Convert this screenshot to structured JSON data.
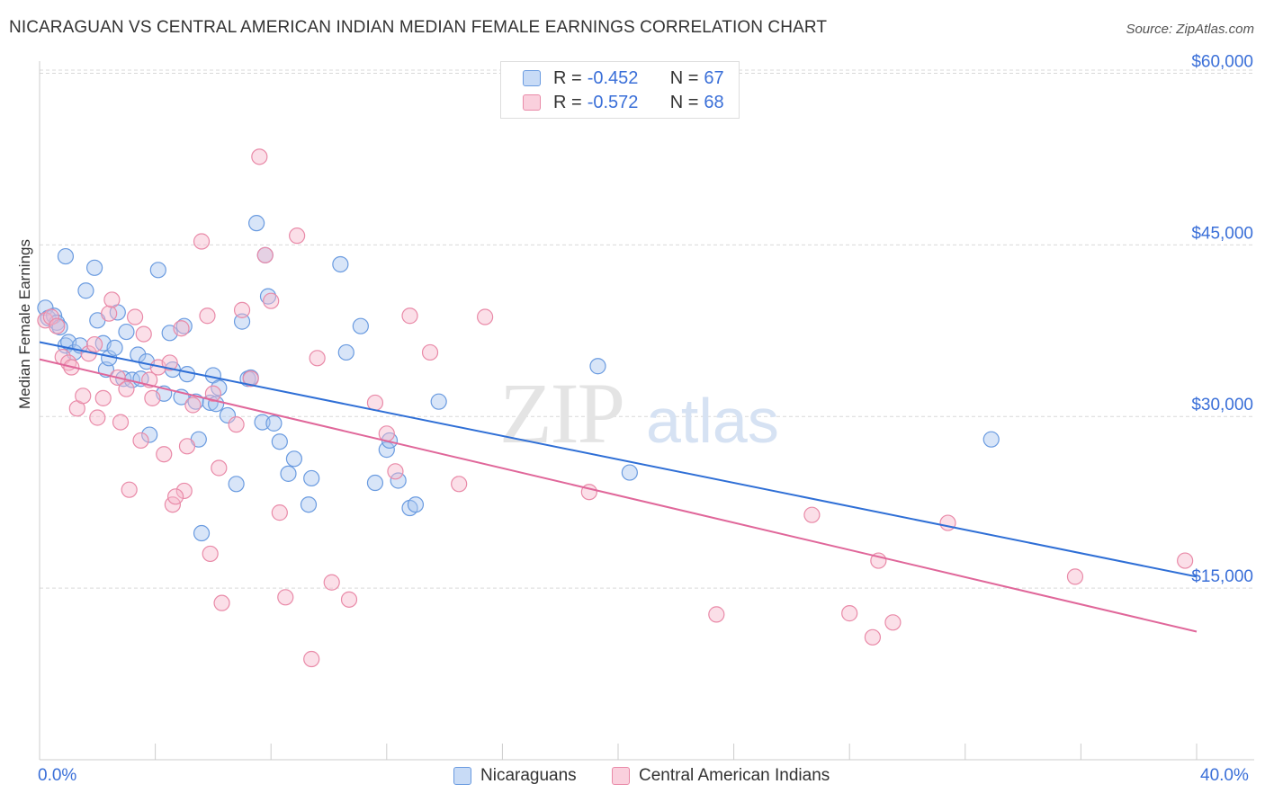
{
  "title": "NICARAGUAN VS CENTRAL AMERICAN INDIAN MEDIAN FEMALE EARNINGS CORRELATION CHART",
  "source": "Source: ZipAtlas.com",
  "watermark": {
    "part1": "ZIP",
    "part2": "atlas"
  },
  "legend_top": [
    {
      "r_label": "R = ",
      "r_value": "-0.452",
      "n_label": "N = ",
      "n_value": "67"
    },
    {
      "r_label": "R = ",
      "r_value": "-0.572",
      "n_label": "N = ",
      "n_value": "68"
    }
  ],
  "legend_bottom": [
    "Nicaraguans",
    "Central American Indians"
  ],
  "x_axis": {
    "min_label": "0.0%",
    "max_label": "40.0%"
  },
  "colors": {
    "blue_fill": "#a9c6f0",
    "blue_stroke": "#6a9be0",
    "blue_line": "#2f6fd6",
    "pink_fill": "#f6b8cb",
    "pink_stroke": "#e98aa8",
    "pink_line": "#e0679a",
    "axis_text": "#3a6fd8",
    "grid": "#d9d9d9"
  },
  "chart_data": {
    "type": "scatter",
    "xlabel": "",
    "ylabel": "Median Female Earnings",
    "xlim": [
      0,
      40
    ],
    "ylim": [
      0,
      62000
    ],
    "y_ticks": [
      {
        "value": 15000,
        "label": "$15,000"
      },
      {
        "value": 30000,
        "label": "$30,000"
      },
      {
        "value": 45000,
        "label": "$45,000"
      },
      {
        "value": 60000,
        "label": "$60,000"
      }
    ],
    "series": [
      {
        "name": "Nicaraguans",
        "color": "#6a9be0",
        "trend": {
          "x": [
            0,
            40
          ],
          "y": [
            36500,
            16000
          ]
        },
        "points": [
          [
            0.2,
            39500
          ],
          [
            0.3,
            38600
          ],
          [
            0.5,
            38800
          ],
          [
            0.6,
            38200
          ],
          [
            0.7,
            37800
          ],
          [
            0.9,
            36200
          ],
          [
            1.0,
            36500
          ],
          [
            1.2,
            35600
          ],
          [
            0.9,
            44000
          ],
          [
            1.6,
            41000
          ],
          [
            1.9,
            43000
          ],
          [
            2.0,
            38400
          ],
          [
            2.2,
            36400
          ],
          [
            2.3,
            34100
          ],
          [
            2.4,
            35100
          ],
          [
            2.6,
            36000
          ],
          [
            2.7,
            39100
          ],
          [
            2.9,
            33300
          ],
          [
            3.0,
            37400
          ],
          [
            3.2,
            33200
          ],
          [
            3.4,
            35400
          ],
          [
            3.7,
            34800
          ],
          [
            3.8,
            28400
          ],
          [
            4.1,
            42800
          ],
          [
            4.3,
            32000
          ],
          [
            4.5,
            37300
          ],
          [
            4.9,
            31700
          ],
          [
            5.1,
            33700
          ],
          [
            5.4,
            31300
          ],
          [
            5.5,
            28000
          ],
          [
            5.6,
            19800
          ],
          [
            5.9,
            31200
          ],
          [
            6.0,
            33600
          ],
          [
            6.2,
            32500
          ],
          [
            6.5,
            30100
          ],
          [
            6.8,
            24100
          ],
          [
            7.0,
            38300
          ],
          [
            7.2,
            33300
          ],
          [
            7.5,
            46900
          ],
          [
            7.7,
            29500
          ],
          [
            7.8,
            44100
          ],
          [
            7.9,
            40500
          ],
          [
            8.1,
            29400
          ],
          [
            8.3,
            27800
          ],
          [
            8.6,
            25000
          ],
          [
            8.8,
            26300
          ],
          [
            9.3,
            22300
          ],
          [
            9.4,
            24600
          ],
          [
            10.4,
            43300
          ],
          [
            10.6,
            35600
          ],
          [
            11.1,
            37900
          ],
          [
            11.6,
            24200
          ],
          [
            12.0,
            27100
          ],
          [
            12.1,
            27900
          ],
          [
            12.4,
            24400
          ],
          [
            12.8,
            22000
          ],
          [
            13.0,
            22300
          ],
          [
            13.8,
            31300
          ],
          [
            19.3,
            34400
          ],
          [
            20.4,
            25100
          ],
          [
            32.9,
            28000
          ],
          [
            6.1,
            31100
          ],
          [
            5.0,
            37900
          ],
          [
            3.5,
            33300
          ],
          [
            1.4,
            36200
          ],
          [
            4.6,
            34100
          ],
          [
            7.3,
            33400
          ]
        ]
      },
      {
        "name": "Central American Indians",
        "color": "#e98aa8",
        "trend": {
          "x": [
            0,
            40
          ],
          "y": [
            35000,
            11200
          ]
        },
        "points": [
          [
            0.2,
            38400
          ],
          [
            0.4,
            38700
          ],
          [
            0.6,
            37900
          ],
          [
            0.8,
            35200
          ],
          [
            1.0,
            34700
          ],
          [
            1.1,
            34300
          ],
          [
            1.3,
            30700
          ],
          [
            1.5,
            31800
          ],
          [
            1.7,
            35500
          ],
          [
            1.9,
            36300
          ],
          [
            2.0,
            29900
          ],
          [
            2.2,
            31600
          ],
          [
            2.4,
            39000
          ],
          [
            2.5,
            40200
          ],
          [
            2.7,
            33400
          ],
          [
            2.8,
            29500
          ],
          [
            3.0,
            32400
          ],
          [
            3.1,
            23600
          ],
          [
            3.3,
            38700
          ],
          [
            3.5,
            27900
          ],
          [
            3.6,
            37200
          ],
          [
            3.8,
            33200
          ],
          [
            3.9,
            31600
          ],
          [
            4.1,
            34300
          ],
          [
            4.3,
            26700
          ],
          [
            4.5,
            34700
          ],
          [
            4.6,
            22300
          ],
          [
            4.9,
            37700
          ],
          [
            5.0,
            23500
          ],
          [
            5.1,
            27400
          ],
          [
            5.3,
            31000
          ],
          [
            5.6,
            45300
          ],
          [
            5.8,
            38800
          ],
          [
            5.9,
            18000
          ],
          [
            6.0,
            32000
          ],
          [
            6.2,
            25500
          ],
          [
            6.3,
            13700
          ],
          [
            6.8,
            29300
          ],
          [
            7.0,
            39300
          ],
          [
            7.3,
            33300
          ],
          [
            7.6,
            52700
          ],
          [
            7.8,
            44100
          ],
          [
            8.0,
            40100
          ],
          [
            8.3,
            21600
          ],
          [
            8.5,
            14200
          ],
          [
            8.9,
            45800
          ],
          [
            9.4,
            8800
          ],
          [
            9.6,
            35100
          ],
          [
            10.1,
            15500
          ],
          [
            10.7,
            14000
          ],
          [
            11.6,
            31200
          ],
          [
            12.3,
            25200
          ],
          [
            12.8,
            38800
          ],
          [
            13.5,
            35600
          ],
          [
            14.5,
            24100
          ],
          [
            15.4,
            38700
          ],
          [
            19.0,
            23400
          ],
          [
            23.4,
            12700
          ],
          [
            28.0,
            12800
          ],
          [
            28.8,
            10700
          ],
          [
            29.5,
            12000
          ],
          [
            31.4,
            20700
          ],
          [
            35.8,
            16000
          ],
          [
            39.6,
            17400
          ],
          [
            29.0,
            17400
          ],
          [
            26.7,
            21400
          ],
          [
            4.7,
            23000
          ],
          [
            12.0,
            28500
          ]
        ]
      }
    ]
  }
}
